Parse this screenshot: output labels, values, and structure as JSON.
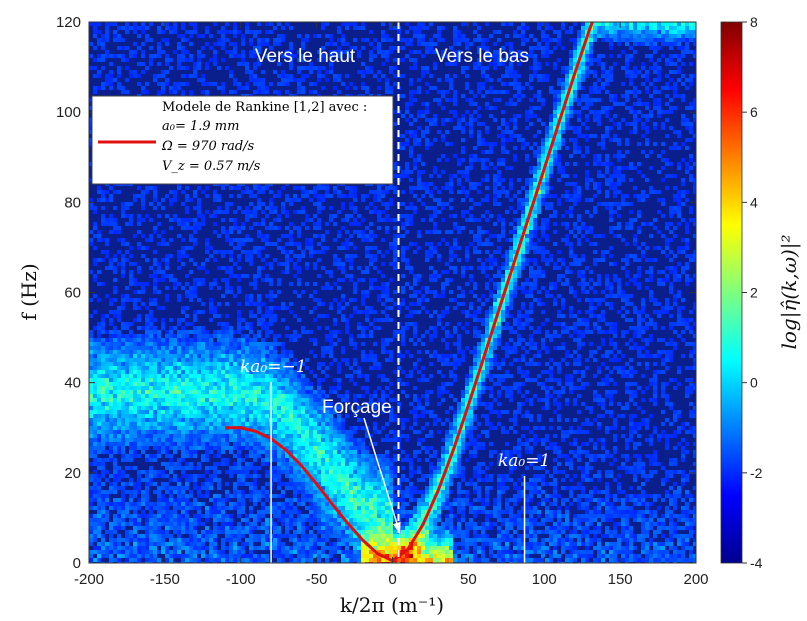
{
  "chart_data": {
    "type": "heatmap",
    "xlabel": "k/2π (m⁻¹)",
    "ylabel": "f (Hz)",
    "xlim": [
      -200,
      200
    ],
    "ylim": [
      0,
      120
    ],
    "xticks": [
      "-200",
      "-150",
      "-100",
      "-50",
      "0",
      "50",
      "100",
      "150",
      "200"
    ],
    "yticks": [
      "0",
      "20",
      "40",
      "60",
      "80",
      "100",
      "120"
    ],
    "colorbar": {
      "label": "log|η̂(k,ω)|²",
      "ticks": [
        "-4",
        "-2",
        "0",
        "2",
        "4",
        "6",
        "8"
      ],
      "range": [
        -4,
        8
      ]
    },
    "colormap": "jet",
    "annotations": {
      "up_label": "Vers le haut",
      "down_label": "Vers le bas",
      "forcing_label": "Forçage",
      "ka_neg": "ka₀=−1",
      "ka_pos": "ka₀=1"
    },
    "legend": {
      "line1": "Modele de Rankine [1,2] avec :",
      "line2": "a₀= 1.9 mm",
      "line3": "Ω = 970 rad/s",
      "line4": "V_z = 0.57 m/s"
    },
    "model_curve": {
      "color": "#e01010",
      "x": [
        -110,
        -100,
        -90,
        -80,
        -70,
        -60,
        -50,
        -40,
        -30,
        -20,
        -10,
        0,
        10,
        20,
        30,
        40,
        50,
        60,
        70,
        80,
        90,
        100,
        110,
        120,
        130,
        134
      ],
      "y": [
        30,
        30,
        29.2,
        27.6,
        25,
        21.6,
        17.5,
        13.2,
        9.0,
        5.2,
        2.1,
        0.5,
        3.0,
        8.5,
        16.0,
        25.0,
        35.0,
        45.5,
        56.0,
        66.5,
        77.0,
        87.5,
        98.0,
        108.5,
        118.5,
        122
      ]
    },
    "ka_neg_x": -80,
    "ka_pos_x": 87,
    "forcing_x": 5
  }
}
